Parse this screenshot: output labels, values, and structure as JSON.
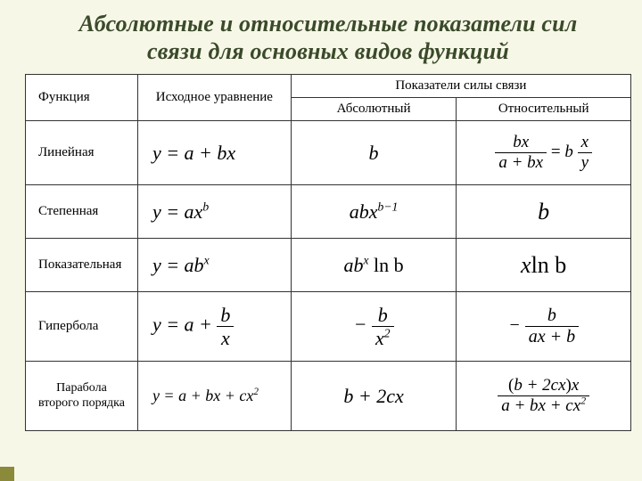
{
  "title_line1": "Абсолютные и относительные показатели сил",
  "title_line2": "связи для основных видов функций",
  "headers": {
    "func": "Функция",
    "eq": "Исходное уравнение",
    "group": "Показатели силы связи",
    "abs": "Абсолютный",
    "rel": "Относительный"
  },
  "rows": {
    "r1": {
      "name": "Линейная",
      "eq": "y = a + bx",
      "abs": "b",
      "rel_num1": "bx",
      "rel_den1": "a + bx",
      "rel_rhs_b": "b",
      "rel_num2": "x",
      "rel_den2": "y"
    },
    "r2": {
      "name": "Степенная",
      "eq_pre": "y = ax",
      "eq_sup": "b",
      "abs_pre": "abx",
      "abs_sup": "b−1",
      "rel": "b"
    },
    "r3": {
      "name": "Показательная",
      "eq_pre": "y = ab",
      "eq_sup": "x",
      "abs_pre": "ab",
      "abs_sup": "x",
      "abs_post": " ln b",
      "rel_pre": "x",
      "rel_post": "ln b"
    },
    "r4": {
      "name": "Гипербола",
      "eq_pre": "y = a + ",
      "eq_num": "b",
      "eq_den": "x",
      "abs_sign": "− ",
      "abs_num": "b",
      "abs_den_pre": "x",
      "abs_den_sup": "2",
      "rel_sign": "− ",
      "rel_num": "b",
      "rel_den": "ax + b"
    },
    "r5": {
      "name1": "Парабола",
      "name2": "второго порядка",
      "eq_pre": "y = a + bx + cx",
      "eq_sup": "2",
      "abs": "b + 2cx",
      "rel_num_l": "(",
      "rel_num_mid": "b + 2cx",
      "rel_num_r": ")",
      "rel_num_post": "x",
      "rel_den_pre": "a + bx + cx",
      "rel_den_sup": "2"
    }
  },
  "colors": {
    "background": "#f7f7e8",
    "table_bg": "#ffffff",
    "border": "#333333",
    "title": "#3a4a2a",
    "corner": "#8a8a3a"
  }
}
